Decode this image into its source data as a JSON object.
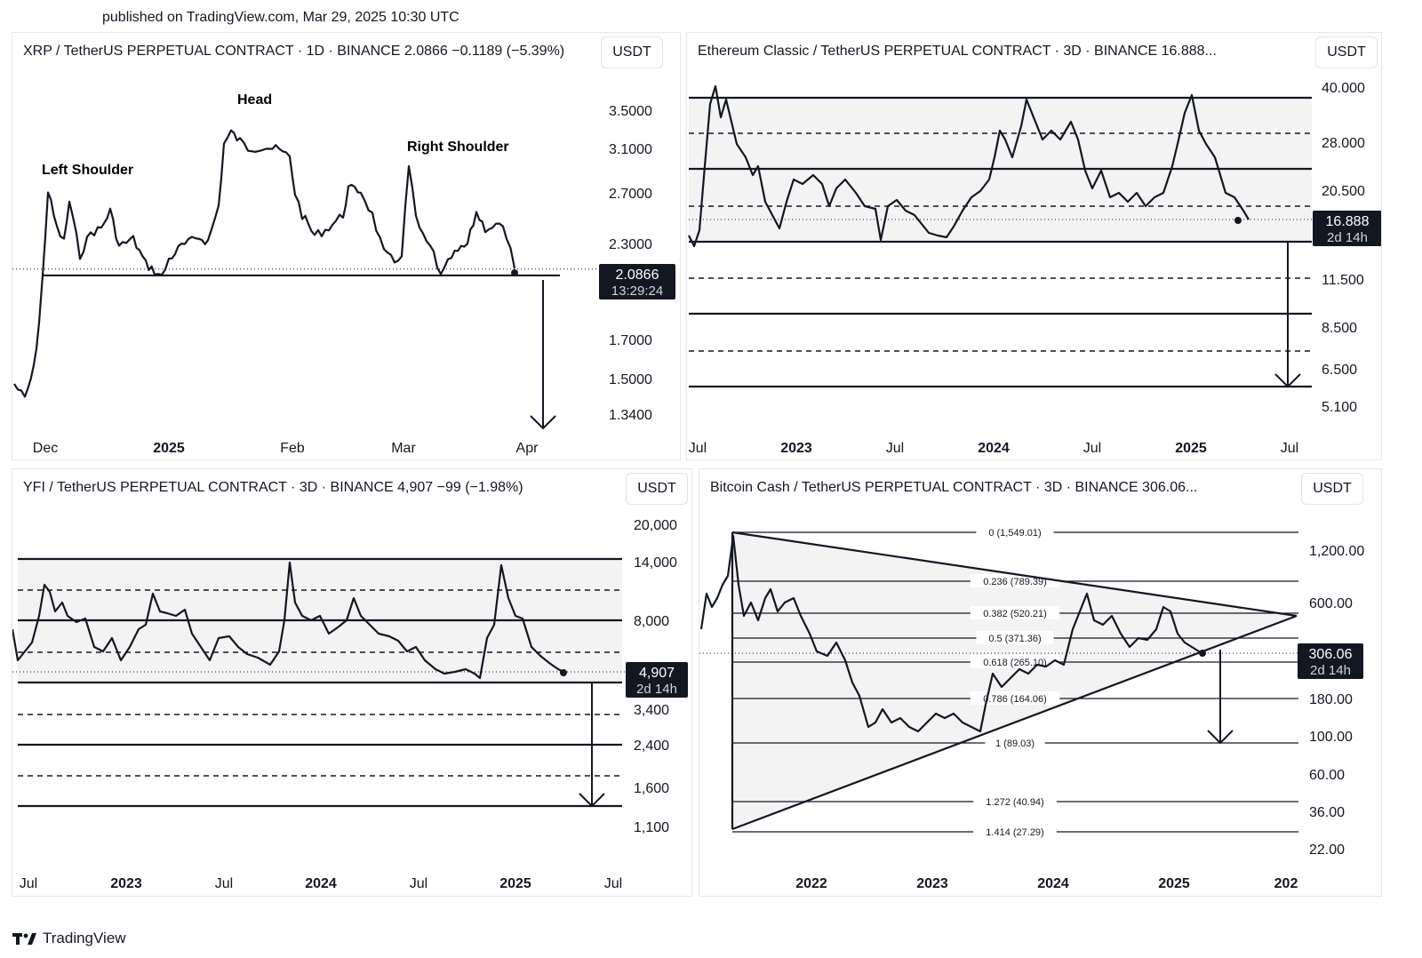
{
  "header": {
    "published": "published on TradingView.com, Mar 29, 2025 10:30 UTC"
  },
  "footer": {
    "brand": "TradingView",
    "logo": "tv-logo-icon"
  },
  "chart_data": [
    {
      "type": "line",
      "title": "XRP / TetherUS PERPETUAL CONTRACT · 1D · BINANCE  2.0866  −0.1189 (−5.39%)",
      "unit_button": "USDT",
      "price_scale": "log",
      "y_ticks": [
        "3.5000",
        "3.1000",
        "2.7000",
        "2.3000",
        "1.7000",
        "1.5000",
        "1.3400"
      ],
      "x_ticks": [
        {
          "label": "Dec",
          "bold": false
        },
        {
          "label": "2025",
          "bold": true
        },
        {
          "label": "Feb",
          "bold": false
        },
        {
          "label": "Mar",
          "bold": false
        },
        {
          "label": "Apr",
          "bold": false
        }
      ],
      "last_price": "2.0866",
      "countdown": "13:29:24",
      "annotations": [
        "Left Shoulder",
        "Head",
        "Right Shoulder"
      ],
      "neckline": 2.08,
      "projection_target": 1.32
    },
    {
      "type": "line",
      "title": "Ethereum Classic / TetherUS PERPETUAL CONTRACT · 3D · BINANCE  16.888...",
      "unit_button": "USDT",
      "price_scale": "log",
      "y_ticks": [
        "40.000",
        "28.000",
        "20.500",
        "11.500",
        "8.500",
        "6.500",
        "5.100"
      ],
      "x_ticks": [
        {
          "label": "Jul",
          "bold": false
        },
        {
          "label": "2023",
          "bold": true
        },
        {
          "label": "Jul",
          "bold": false
        },
        {
          "label": "2024",
          "bold": true
        },
        {
          "label": "Jul",
          "bold": false
        },
        {
          "label": "2025",
          "bold": true
        },
        {
          "label": "Jul",
          "bold": false
        }
      ],
      "last_price": "16.888",
      "countdown": "2d 14h",
      "range_box": [
        14.5,
        37.5
      ],
      "solid_levels": [
        37.5,
        23.5,
        14.5,
        9.3,
        5.9
      ],
      "dashed_levels": [
        30.0,
        18.2,
        11.7,
        7.4
      ]
    },
    {
      "type": "line",
      "title": "YFI / TetherUS PERPETUAL CONTRACT · 3D · BINANCE  4,907  −99 (−1.98%)",
      "unit_button": "USDT",
      "price_scale": "log",
      "y_ticks": [
        "20,000",
        "14,000",
        "8,000",
        "3,400",
        "2,400",
        "1,600",
        "1,100"
      ],
      "x_ticks": [
        {
          "label": "Jul",
          "bold": false
        },
        {
          "label": "2023",
          "bold": true
        },
        {
          "label": "Jul",
          "bold": false
        },
        {
          "label": "2024",
          "bold": true
        },
        {
          "label": "Jul",
          "bold": false
        },
        {
          "label": "2025",
          "bold": true
        },
        {
          "label": "Jul",
          "bold": false
        }
      ],
      "last_price": "4,907",
      "countdown": "2d 14h",
      "range_box": [
        4700,
        14000
      ],
      "solid_levels": [
        14000,
        8100,
        4700,
        2400,
        1380
      ],
      "dashed_levels": [
        11000,
        6100,
        3400,
        1900
      ]
    },
    {
      "type": "line",
      "title": "Bitcoin Cash / TetherUS PERPETUAL CONTRACT · 3D · BINANCE  306.06...",
      "unit_button": "USDT",
      "price_scale": "log",
      "y_ticks": [
        "1,200.00",
        "600.00",
        "180.00",
        "100.00",
        "60.00",
        "36.00",
        "22.00"
      ],
      "x_ticks": [
        {
          "label": "2022",
          "bold": true
        },
        {
          "label": "2023",
          "bold": true
        },
        {
          "label": "2024",
          "bold": true
        },
        {
          "label": "2025",
          "bold": true
        },
        {
          "label": "202",
          "bold": true
        }
      ],
      "last_price": "306.06",
      "countdown": "2d 14h",
      "fib_levels": [
        {
          "label": "0 (1,549.01)",
          "value": 1549.01
        },
        {
          "label": "0.236 (789.39)",
          "value": 789.39
        },
        {
          "label": "0.382 (520.21)",
          "value": 520.21
        },
        {
          "label": "0.5 (371.36)",
          "value": 371.36
        },
        {
          "label": "0.618 (265.10)",
          "value": 265.1
        },
        {
          "label": "0.786 (164.06)",
          "value": 164.06
        },
        {
          "label": "1 (89.03)",
          "value": 89.03
        },
        {
          "label": "1.272 (40.94)",
          "value": 40.94
        },
        {
          "label": "1.414 (27.29)",
          "value": 27.29
        }
      ],
      "projection_target": 89
    }
  ]
}
